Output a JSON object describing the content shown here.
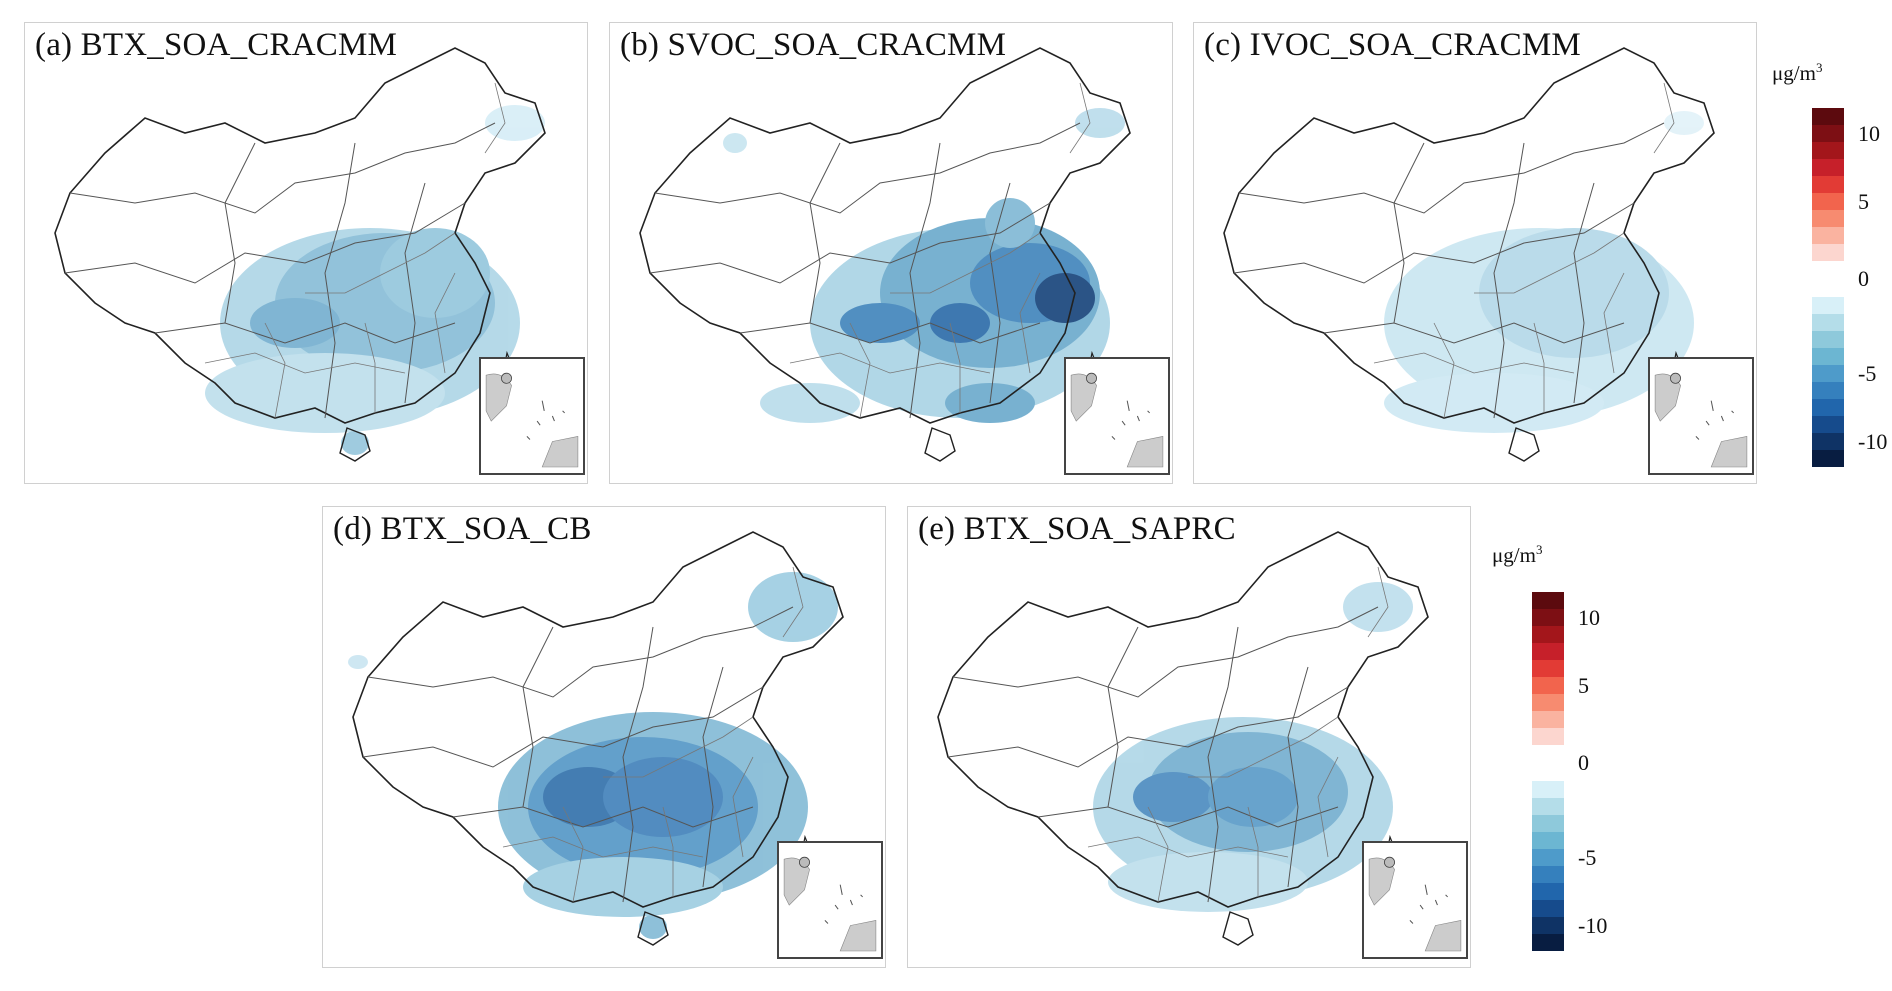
{
  "panels": [
    {
      "id": "a",
      "title": "(a) BTX_SOA_CRACMM"
    },
    {
      "id": "b",
      "title": "(b) SVOC_SOA_CRACMM"
    },
    {
      "id": "c",
      "title": "(c) IVOC_SOA_CRACMM"
    },
    {
      "id": "d",
      "title": "(d) BTX_SOA_CB"
    },
    {
      "id": "e",
      "title": "(e) BTX_SOA_SAPRC"
    }
  ],
  "colorbar": {
    "unit": "μg/m",
    "unit_sup": "3",
    "ticks": [
      "10",
      "5",
      "0",
      "-5",
      "-10"
    ],
    "colors_positive": [
      "#5c0a0e",
      "#7d0f14",
      "#a3161b",
      "#c6202a",
      "#e23b35",
      "#f2644d",
      "#f78b70",
      "#fab3a0",
      "#fcd6cf"
    ],
    "colors_negative": [
      "#d8f0f8",
      "#b4dde9",
      "#8ec9db",
      "#6cb6d2",
      "#4e9bca",
      "#3580bd",
      "#2166ac",
      "#164b8c",
      "#0f3365",
      "#081d41"
    ]
  }
}
